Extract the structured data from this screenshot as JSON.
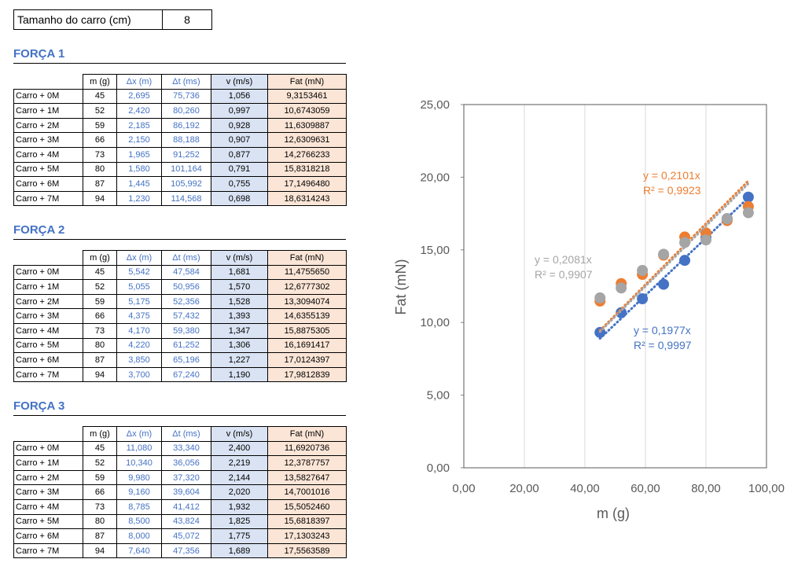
{
  "header": {
    "label": "Tamanho do carro (cm)",
    "value": 8
  },
  "sections": [
    {
      "title": "FORÇA 1",
      "columns": [
        "m (g)",
        "Δx (m)",
        "Δt (ms)",
        "v (m/s)",
        "Fat (mN)"
      ],
      "rows": [
        [
          "Carro + 0M",
          "45",
          "2,695",
          "75,736",
          "1,056",
          "9,3153461"
        ],
        [
          "Carro + 1M",
          "52",
          "2,420",
          "80,260",
          "0,997",
          "10,6743059"
        ],
        [
          "Carro + 2M",
          "59",
          "2,185",
          "86,192",
          "0,928",
          "11,6309887"
        ],
        [
          "Carro + 3M",
          "66",
          "2,150",
          "88,188",
          "0,907",
          "12,6309631"
        ],
        [
          "Carro + 4M",
          "73",
          "1,965",
          "91,252",
          "0,877",
          "14,2766233"
        ],
        [
          "Carro + 5M",
          "80",
          "1,580",
          "101,164",
          "0,791",
          "15,8318218"
        ],
        [
          "Carro + 6M",
          "87",
          "1,445",
          "105,992",
          "0,755",
          "17,1496480"
        ],
        [
          "Carro + 7M",
          "94",
          "1,230",
          "114,568",
          "0,698",
          "18,6314243"
        ]
      ]
    },
    {
      "title": "FORÇA 2",
      "columns": [
        "m (g)",
        "Δx (m)",
        "Δt (ms)",
        "v (m/s)",
        "Fat (mN)"
      ],
      "rows": [
        [
          "Carro + 0M",
          "45",
          "5,542",
          "47,584",
          "1,681",
          "11,4755650"
        ],
        [
          "Carro + 1M",
          "52",
          "5,055",
          "50,956",
          "1,570",
          "12,6777302"
        ],
        [
          "Carro + 2M",
          "59",
          "5,175",
          "52,356",
          "1,528",
          "13,3094074"
        ],
        [
          "Carro + 3M",
          "66",
          "4,375",
          "57,432",
          "1,393",
          "14,6355139"
        ],
        [
          "Carro + 4M",
          "73",
          "4,170",
          "59,380",
          "1,347",
          "15,8875305"
        ],
        [
          "Carro + 5M",
          "80",
          "4,220",
          "61,252",
          "1,306",
          "16,1691417"
        ],
        [
          "Carro + 6M",
          "87",
          "3,850",
          "65,196",
          "1,227",
          "17,0124397"
        ],
        [
          "Carro + 7M",
          "94",
          "3,700",
          "67,240",
          "1,190",
          "17,9812839"
        ]
      ]
    },
    {
      "title": "FORÇA 3",
      "columns": [
        "m (g)",
        "Δx (m)",
        "Δt (ms)",
        "v (m/s)",
        "Fat (mN)"
      ],
      "rows": [
        [
          "Carro + 0M",
          "45",
          "11,080",
          "33,340",
          "2,400",
          "11,6920736"
        ],
        [
          "Carro + 1M",
          "52",
          "10,340",
          "36,056",
          "2,219",
          "12,3787757"
        ],
        [
          "Carro + 2M",
          "59",
          "9,980",
          "37,320",
          "2,144",
          "13,5827647"
        ],
        [
          "Carro + 3M",
          "66",
          "9,160",
          "39,604",
          "2,020",
          "14,7001016"
        ],
        [
          "Carro + 4M",
          "73",
          "8,785",
          "41,412",
          "1,932",
          "15,5052460"
        ],
        [
          "Carro + 5M",
          "80",
          "8,500",
          "43,824",
          "1,825",
          "15,6818397"
        ],
        [
          "Carro + 6M",
          "87",
          "8,000",
          "45,072",
          "1,775",
          "17,1303243"
        ],
        [
          "Carro + 7M",
          "94",
          "7,640",
          "47,356",
          "1,689",
          "17,5563589"
        ]
      ]
    }
  ],
  "chart_data": {
    "type": "scatter",
    "x_label": "m (g)",
    "y_label": "Fat (mN)",
    "x": [
      45,
      52,
      59,
      66,
      73,
      80,
      87,
      94
    ],
    "xlim": [
      0,
      100
    ],
    "ylim": [
      0,
      25
    ],
    "xgrid": true,
    "xticks": [
      {
        "value": 0,
        "label": "0,00"
      },
      {
        "value": 20,
        "label": "20,00"
      },
      {
        "value": 40,
        "label": "40,00"
      },
      {
        "value": 60,
        "label": "60,00"
      },
      {
        "value": 80,
        "label": "80,00"
      },
      {
        "value": 100,
        "label": "100,00"
      }
    ],
    "yticks": [
      {
        "value": 0,
        "label": "0,00"
      },
      {
        "value": 5,
        "label": "5,00"
      },
      {
        "value": 10,
        "label": "10,00"
      },
      {
        "value": 15,
        "label": "15,00"
      },
      {
        "value": 20,
        "label": "20,00"
      },
      {
        "value": 25,
        "label": "25,00"
      }
    ],
    "series": [
      {
        "color": "#4472c4",
        "values": [
          9.3153461,
          10.6743059,
          11.6309887,
          12.6309631,
          14.2766233,
          15.8318218,
          17.149648,
          18.6314243
        ],
        "trendline": {
          "slope": 0.1977,
          "equation": "y = 0,1977x",
          "r2": "R² = 0,9997"
        }
      },
      {
        "color": "#ed7d31",
        "values": [
          11.475565,
          12.6777302,
          13.3094074,
          14.6355139,
          15.8875305,
          16.1691417,
          17.0124397,
          17.9812839
        ],
        "trendline": {
          "slope": 0.2101,
          "equation": "y = 0,2101x",
          "r2": "R² = 0,9923"
        }
      },
      {
        "color": "#a5a5a5",
        "values": [
          11.6920736,
          12.3787757,
          13.5827647,
          14.7001016,
          15.505246,
          15.6818397,
          17.1303243,
          17.5563589
        ],
        "trendline": {
          "slope": 0.2081,
          "equation": "y = 0,2081x",
          "r2": "R² = 0,9907"
        }
      }
    ]
  }
}
